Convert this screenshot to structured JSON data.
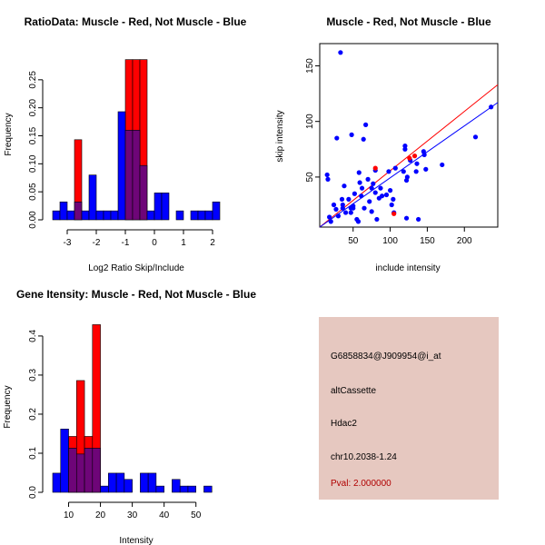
{
  "colors": {
    "red": "#ff0000",
    "blue": "#0000ff",
    "overlap": "#6e0578",
    "panel_bg": "#e6c8c0",
    "pval_text": "#b00000"
  },
  "chart_data": [
    {
      "type": "bar",
      "title": "RatioData: Muscle - Red, Not Muscle - Blue",
      "xlabel": "Log2 Ratio Skip/Include",
      "ylabel": "Frequency",
      "xlim": [
        -3.5,
        2.25
      ],
      "ylim": [
        0,
        0.3
      ],
      "xticks": [
        -3,
        -2,
        -1,
        0,
        1,
        2
      ],
      "yticks": [
        0.0,
        0.05,
        0.1,
        0.15,
        0.2,
        0.25
      ],
      "ytick_labels": [
        "0.00",
        "0.05",
        "0.10",
        "0.15",
        "0.20",
        "0.25"
      ],
      "bin_width": 0.25,
      "series": [
        {
          "name": "Not Muscle",
          "color": "blue",
          "bins": [
            {
              "x": -3.5,
              "v": 0.016
            },
            {
              "x": -3.25,
              "v": 0.032
            },
            {
              "x": -3.0,
              "v": 0.016
            },
            {
              "x": -2.75,
              "v": 0.032
            },
            {
              "x": -2.5,
              "v": 0.016
            },
            {
              "x": -2.25,
              "v": 0.08
            },
            {
              "x": -2.0,
              "v": 0.016
            },
            {
              "x": -1.75,
              "v": 0.016
            },
            {
              "x": -1.5,
              "v": 0.016
            },
            {
              "x": -1.25,
              "v": 0.193
            },
            {
              "x": -1.0,
              "v": 0.16
            },
            {
              "x": -0.75,
              "v": 0.16
            },
            {
              "x": -0.5,
              "v": 0.097
            },
            {
              "x": -0.25,
              "v": 0.016
            },
            {
              "x": 0.0,
              "v": 0.048
            },
            {
              "x": 0.25,
              "v": 0.048
            },
            {
              "x": 0.75,
              "v": 0.016
            },
            {
              "x": 1.25,
              "v": 0.016
            },
            {
              "x": 1.5,
              "v": 0.016
            },
            {
              "x": 1.75,
              "v": 0.016
            },
            {
              "x": 2.0,
              "v": 0.032
            }
          ]
        },
        {
          "name": "Muscle",
          "color": "red",
          "bins": [
            {
              "x": -2.75,
              "v": 0.143
            },
            {
              "x": -1.0,
              "v": 0.286
            },
            {
              "x": -0.75,
              "v": 0.286
            },
            {
              "x": -0.5,
              "v": 0.286
            }
          ]
        }
      ]
    },
    {
      "type": "scatter",
      "title": "Muscle - Red, Not Muscle - Blue",
      "xlabel": "include intensity",
      "ylabel": "skip intensity",
      "xlim": [
        5,
        245
      ],
      "ylim": [
        5,
        170
      ],
      "xticks": [
        50,
        100,
        150,
        200
      ],
      "yticks": [
        50,
        100,
        150
      ],
      "series": [
        {
          "name": "Not Muscle",
          "color": "blue",
          "points": [
            [
              15,
              52
            ],
            [
              16,
              48
            ],
            [
              18,
              14
            ],
            [
              20,
              10
            ],
            [
              24,
              25
            ],
            [
              27,
              21
            ],
            [
              28,
              85
            ],
            [
              30,
              15
            ],
            [
              33,
              162
            ],
            [
              35,
              30
            ],
            [
              36,
              22
            ],
            [
              36,
              25
            ],
            [
              38,
              42
            ],
            [
              40,
              18
            ],
            [
              44,
              30
            ],
            [
              47,
              18
            ],
            [
              47,
              22
            ],
            [
              48,
              88
            ],
            [
              50,
              22
            ],
            [
              50,
              24
            ],
            [
              52,
              35
            ],
            [
              55,
              12
            ],
            [
              57,
              10
            ],
            [
              58,
              54
            ],
            [
              59,
              45
            ],
            [
              61,
              33
            ],
            [
              62,
              40
            ],
            [
              64,
              84
            ],
            [
              65,
              22
            ],
            [
              67,
              97
            ],
            [
              70,
              48
            ],
            [
              72,
              28
            ],
            [
              75,
              19
            ],
            [
              75,
              40
            ],
            [
              77,
              44
            ],
            [
              80,
              56
            ],
            [
              80,
              36
            ],
            [
              82,
              12
            ],
            [
              85,
              31
            ],
            [
              87,
              40
            ],
            [
              89,
              33
            ],
            [
              95,
              34
            ],
            [
              98,
              55
            ],
            [
              100,
              38
            ],
            [
              102,
              25
            ],
            [
              104,
              30
            ],
            [
              105,
              18
            ],
            [
              107,
              58
            ],
            [
              118,
              55
            ],
            [
              120,
              75
            ],
            [
              120,
              78
            ],
            [
              122,
              47
            ],
            [
              122,
              13
            ],
            [
              123,
              50
            ],
            [
              127,
              65
            ],
            [
              135,
              55
            ],
            [
              136,
              62
            ],
            [
              138,
              12
            ],
            [
              145,
              73
            ],
            [
              146,
              70
            ],
            [
              148,
              57
            ],
            [
              170,
              61
            ],
            [
              215,
              86
            ],
            [
              236,
              113
            ]
          ]
        },
        {
          "name": "Muscle",
          "color": "red",
          "points": [
            [
              80,
              58
            ],
            [
              105,
              17
            ],
            [
              126,
              67
            ],
            [
              133,
              69
            ]
          ]
        }
      ],
      "fit_lines": [
        {
          "color": "red",
          "from": [
            5,
            5
          ],
          "to": [
            245,
            133
          ]
        },
        {
          "color": "blue",
          "from": [
            5,
            5
          ],
          "to": [
            245,
            117
          ]
        }
      ]
    },
    {
      "type": "bar",
      "title": "Gene Itensity: Muscle - Red, Not Muscle - Blue",
      "xlabel": "Intensity",
      "ylabel": "Frequency",
      "xlim": [
        5,
        57.5
      ],
      "ylim": [
        0,
        0.43
      ],
      "xticks": [
        10,
        20,
        30,
        40,
        50
      ],
      "yticks": [
        0.0,
        0.1,
        0.2,
        0.3,
        0.4
      ],
      "ytick_labels": [
        "0.0",
        "0.1",
        "0.2",
        "0.3",
        "0.4"
      ],
      "bin_width": 2.5,
      "series": [
        {
          "name": "Not Muscle",
          "color": "blue",
          "bins": [
            {
              "x": 5.0,
              "v": 0.049
            },
            {
              "x": 7.5,
              "v": 0.162
            },
            {
              "x": 10.0,
              "v": 0.113
            },
            {
              "x": 12.5,
              "v": 0.098
            },
            {
              "x": 15.0,
              "v": 0.113
            },
            {
              "x": 17.5,
              "v": 0.113
            },
            {
              "x": 20.0,
              "v": 0.016
            },
            {
              "x": 22.5,
              "v": 0.049
            },
            {
              "x": 25.0,
              "v": 0.049
            },
            {
              "x": 27.5,
              "v": 0.033
            },
            {
              "x": 32.5,
              "v": 0.049
            },
            {
              "x": 35.0,
              "v": 0.049
            },
            {
              "x": 37.5,
              "v": 0.016
            },
            {
              "x": 42.5,
              "v": 0.033
            },
            {
              "x": 45.0,
              "v": 0.016
            },
            {
              "x": 47.5,
              "v": 0.016
            },
            {
              "x": 52.5,
              "v": 0.016
            }
          ]
        },
        {
          "name": "Muscle",
          "color": "red",
          "bins": [
            {
              "x": 10.0,
              "v": 0.143
            },
            {
              "x": 12.5,
              "v": 0.286
            },
            {
              "x": 15.0,
              "v": 0.143
            },
            {
              "x": 17.5,
              "v": 0.429
            }
          ]
        }
      ]
    }
  ],
  "info": {
    "probe_id": "G6858834@J909954@i_at",
    "event_type": "altCassette",
    "gene": "Hdac2",
    "location": "chr10.2038-1.24",
    "pval": "Pval: 2.000000"
  }
}
